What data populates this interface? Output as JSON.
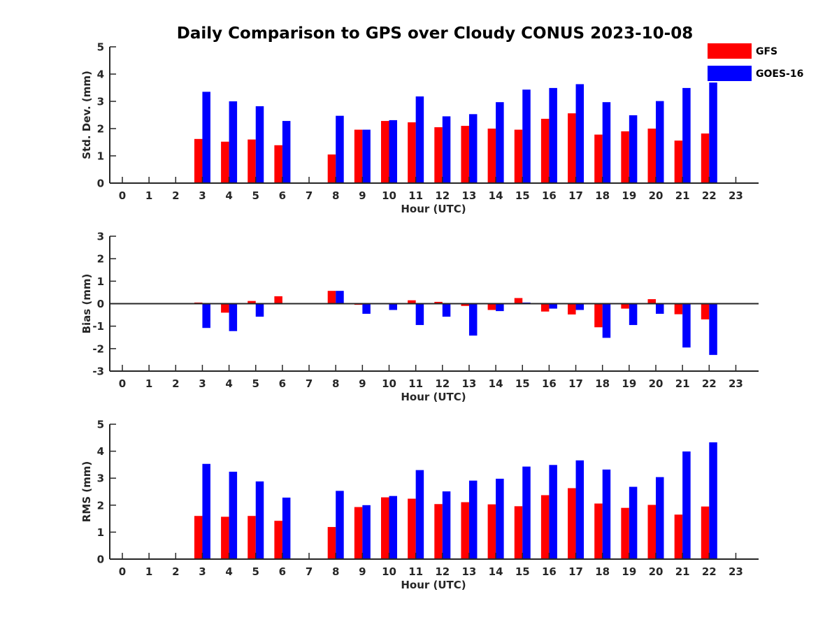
{
  "title": "Daily Comparison to GPS over Cloudy CONUS 2023-10-08",
  "legend": {
    "placement": "top-right",
    "entries": [
      {
        "label": "GFS",
        "color": "#ff0000"
      },
      {
        "label": "GOES-16",
        "color": "#0000ff"
      }
    ]
  },
  "chart_data": [
    {
      "type": "bar",
      "xlabel": "Hour (UTC)",
      "ylabel": "Std. Dev. (mm)",
      "ylim": [
        0,
        5
      ],
      "yticks": [
        "0",
        "1",
        "2",
        "3",
        "4",
        "5"
      ],
      "categories": [
        "0",
        "1",
        "2",
        "3",
        "4",
        "5",
        "6",
        "7",
        "8",
        "9",
        "10",
        "11",
        "12",
        "13",
        "14",
        "15",
        "16",
        "17",
        "18",
        "19",
        "20",
        "21",
        "22",
        "23"
      ],
      "series": [
        {
          "name": "GFS",
          "color": "#ff0000",
          "values": [
            null,
            null,
            null,
            1.62,
            1.52,
            1.6,
            1.39,
            null,
            1.05,
            1.96,
            2.28,
            2.23,
            2.05,
            2.1,
            2.0,
            1.96,
            2.36,
            2.56,
            1.78,
            1.9,
            2.0,
            1.56,
            1.82,
            null
          ]
        },
        {
          "name": "GOES-16",
          "color": "#0000ff",
          "values": [
            null,
            null,
            null,
            3.35,
            3.0,
            2.82,
            2.28,
            null,
            2.47,
            1.96,
            2.31,
            3.18,
            2.45,
            2.53,
            2.97,
            3.43,
            3.49,
            3.63,
            2.97,
            2.49,
            3.01,
            3.49,
            3.69,
            null
          ]
        }
      ]
    },
    {
      "type": "bar",
      "xlabel": "Hour (UTC)",
      "ylabel": "Bias (mm)",
      "ylim": [
        -3,
        3
      ],
      "yticks": [
        "-3",
        "-2",
        "-1",
        "0",
        "1",
        "2",
        "3"
      ],
      "categories": [
        "0",
        "1",
        "2",
        "3",
        "4",
        "5",
        "6",
        "7",
        "8",
        "9",
        "10",
        "11",
        "12",
        "13",
        "14",
        "15",
        "16",
        "17",
        "18",
        "19",
        "20",
        "21",
        "22",
        "23"
      ],
      "series": [
        {
          "name": "GFS",
          "color": "#ff0000",
          "values": [
            null,
            null,
            null,
            0.05,
            -0.4,
            0.12,
            0.33,
            null,
            0.57,
            -0.05,
            0.0,
            0.15,
            0.08,
            -0.1,
            -0.28,
            0.25,
            -0.35,
            -0.48,
            -1.05,
            -0.22,
            0.2,
            -0.47,
            -0.7,
            null
          ]
        },
        {
          "name": "GOES-16",
          "color": "#0000ff",
          "values": [
            null,
            null,
            null,
            -1.08,
            -1.22,
            -0.58,
            0.0,
            null,
            0.57,
            -0.45,
            -0.28,
            -0.95,
            -0.58,
            -1.42,
            -0.33,
            0.05,
            -0.22,
            -0.28,
            -1.52,
            -0.95,
            -0.45,
            -1.95,
            -2.28,
            null
          ]
        }
      ]
    },
    {
      "type": "bar",
      "xlabel": "Hour (UTC)",
      "ylabel": "RMS (mm)",
      "ylim": [
        0,
        5
      ],
      "yticks": [
        "0",
        "1",
        "2",
        "3",
        "4",
        "5"
      ],
      "categories": [
        "0",
        "1",
        "2",
        "3",
        "4",
        "5",
        "6",
        "7",
        "8",
        "9",
        "10",
        "11",
        "12",
        "13",
        "14",
        "15",
        "16",
        "17",
        "18",
        "19",
        "20",
        "21",
        "22",
        "23"
      ],
      "series": [
        {
          "name": "GFS",
          "color": "#ff0000",
          "values": [
            null,
            null,
            null,
            1.6,
            1.57,
            1.6,
            1.42,
            null,
            1.19,
            1.93,
            2.29,
            2.24,
            2.04,
            2.11,
            2.03,
            1.96,
            2.37,
            2.63,
            2.06,
            1.9,
            2.01,
            1.65,
            1.95,
            null
          ]
        },
        {
          "name": "GOES-16",
          "color": "#0000ff",
          "values": [
            null,
            null,
            null,
            3.53,
            3.24,
            2.88,
            2.28,
            null,
            2.53,
            2.0,
            2.34,
            3.3,
            2.51,
            2.91,
            2.98,
            3.43,
            3.49,
            3.66,
            3.32,
            2.68,
            3.04,
            3.99,
            4.33,
            null
          ]
        }
      ]
    }
  ]
}
